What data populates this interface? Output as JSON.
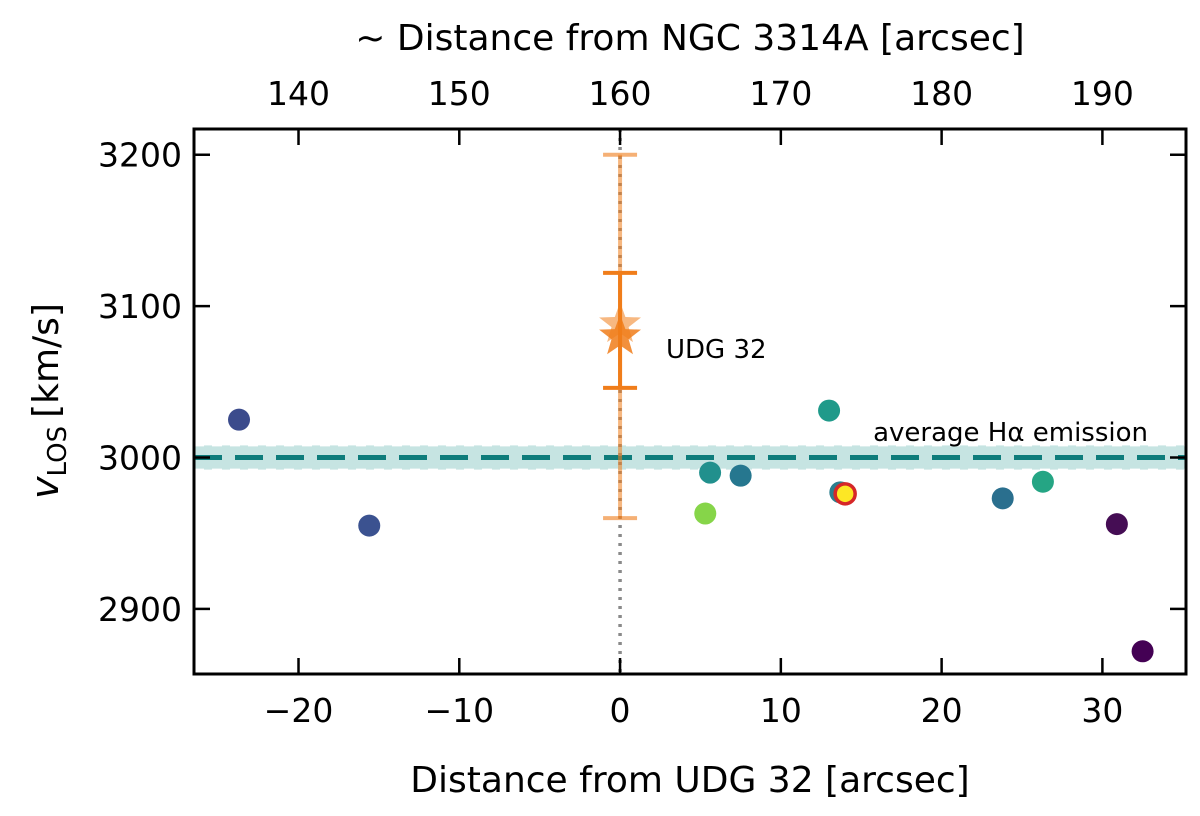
{
  "chart_data": {
    "type": "scatter",
    "xlabel": "Distance from UDG 32 [arcsec]",
    "x2label": "~ Distance from NGC 3314A [arcsec]",
    "ylabel_main": "v",
    "ylabel_sub": "LOS",
    "ylabel_unit": "[km/s]",
    "xlim": [
      -26.5,
      35.2
    ],
    "ylim": [
      2857,
      3217
    ],
    "x_ticks": [
      -20,
      -10,
      0,
      10,
      20,
      30
    ],
    "x_tick_labels": [
      "−20",
      "−10",
      "0",
      "10",
      "20",
      "30"
    ],
    "x2_offset": 160,
    "x2_ticks": [
      140,
      150,
      160,
      170,
      180,
      190
    ],
    "x2_tick_labels": [
      "140",
      "150",
      "160",
      "170",
      "180",
      "190"
    ],
    "y_ticks": [
      2900,
      3000,
      3100,
      3200
    ],
    "y_tick_labels": [
      "2900",
      "3000",
      "3100",
      "3200"
    ],
    "reference_line": {
      "y": 3000,
      "band": [
        2992,
        3008
      ],
      "label": "average Hα emission",
      "color": "#0e7c7b",
      "band_color": "#c6e4e2"
    },
    "vertical_line": {
      "x": 0,
      "color": "#8a8a8a"
    },
    "target": {
      "name": "UDG 32",
      "x": 0,
      "y": 3080,
      "error_inner": [
        3046,
        3122
      ],
      "error_outer": [
        2960,
        3200
      ],
      "y_marker_upper": 3088,
      "color": "#f07d1a"
    },
    "points": [
      {
        "x": -23.7,
        "y": 3025,
        "color": "#3b4b8c"
      },
      {
        "x": -15.6,
        "y": 2955,
        "color": "#3b5290"
      },
      {
        "x": 5.3,
        "y": 2963,
        "color": "#86d549"
      },
      {
        "x": 5.6,
        "y": 2990,
        "color": "#21908d"
      },
      {
        "x": 7.5,
        "y": 2988,
        "color": "#26778f"
      },
      {
        "x": 13.0,
        "y": 3031,
        "color": "#1f9a8a"
      },
      {
        "x": 13.7,
        "y": 2977,
        "color": "#2c7e8e"
      },
      {
        "x": 14.0,
        "y": 2976,
        "color": "#fde725",
        "edge": "#d62728"
      },
      {
        "x": 23.8,
        "y": 2973,
        "color": "#2a6f8e"
      },
      {
        "x": 26.3,
        "y": 2984,
        "color": "#25a584"
      },
      {
        "x": 30.9,
        "y": 2956,
        "color": "#450d54"
      },
      {
        "x": 32.5,
        "y": 2872,
        "color": "#440154"
      }
    ]
  }
}
